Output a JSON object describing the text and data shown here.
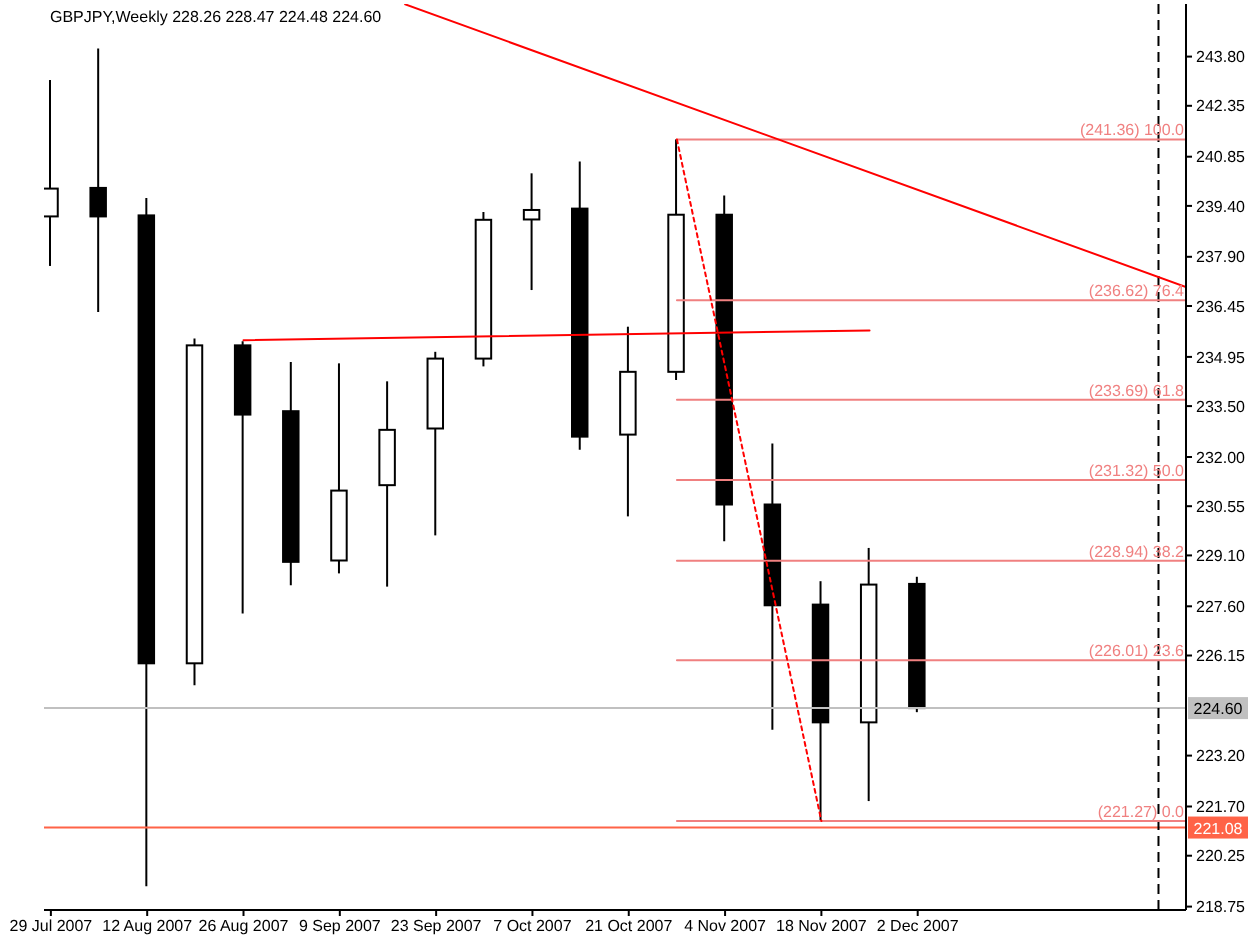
{
  "chart_data": {
    "type": "candlestick",
    "title": "GBPJPY,Weekly 228.26 228.47 224.48 224.60",
    "x": [
      "2007-07-29",
      "2007-08-05",
      "2007-08-12",
      "2007-08-19",
      "2007-08-26",
      "2007-09-02",
      "2007-09-09",
      "2007-09-16",
      "2007-09-23",
      "2007-09-30",
      "2007-10-07",
      "2007-10-14",
      "2007-10-21",
      "2007-10-28",
      "2007-11-04",
      "2007-11-11",
      "2007-11-18",
      "2007-11-25",
      "2007-12-02"
    ],
    "ohlc": [
      [
        239.09,
        243.11,
        237.63,
        239.91
      ],
      [
        239.93,
        244.04,
        236.27,
        239.09
      ],
      [
        239.12,
        239.63,
        219.35,
        225.92
      ],
      [
        225.92,
        235.49,
        225.27,
        235.29
      ],
      [
        235.29,
        235.41,
        227.39,
        233.25
      ],
      [
        233.35,
        234.8,
        228.22,
        228.91
      ],
      [
        228.95,
        234.76,
        228.57,
        231.01
      ],
      [
        231.17,
        234.23,
        228.18,
        232.8
      ],
      [
        232.84,
        235.1,
        229.69,
        234.9
      ],
      [
        234.9,
        239.22,
        234.67,
        238.99
      ],
      [
        239.0,
        240.36,
        236.92,
        239.28
      ],
      [
        239.32,
        240.71,
        232.21,
        232.6
      ],
      [
        232.66,
        235.84,
        230.25,
        234.51
      ],
      [
        234.51,
        241.36,
        234.27,
        239.14
      ],
      [
        239.14,
        239.71,
        229.52,
        230.6
      ],
      [
        230.6,
        232.4,
        223.96,
        227.63
      ],
      [
        227.65,
        228.34,
        221.27,
        224.18
      ],
      [
        224.18,
        229.32,
        221.86,
        228.24
      ],
      [
        228.26,
        228.47,
        224.48,
        224.6
      ]
    ],
    "color": "#000000",
    "colors": [
      "#ffffff",
      "#000000",
      "#000000",
      "#ffffff",
      "#000000",
      "#000000",
      "#ffffff",
      "#ffffff",
      "#ffffff",
      "#ffffff",
      "#ffffff",
      "#000000",
      "#ffffff",
      "#ffffff",
      "#000000",
      "#000000",
      "#000000",
      "#ffffff",
      "#000000"
    ],
    "xlim": [
      "2007-07-28",
      "2008-01-10"
    ],
    "xticks": [
      {
        "value": "2007-07-29",
        "label": "29 Jul 2007"
      },
      {
        "value": "2007-08-12",
        "label": "12 Aug 2007"
      },
      {
        "value": "2007-08-26",
        "label": "26 Aug 2007"
      },
      {
        "value": "2007-09-09",
        "label": "9 Sep 2007"
      },
      {
        "value": "2007-09-23",
        "label": "23 Sep 2007"
      },
      {
        "value": "2007-10-07",
        "label": "7 Oct 2007"
      },
      {
        "value": "2007-10-21",
        "label": "21 Oct 2007"
      },
      {
        "value": "2007-11-04",
        "label": "4 Nov 2007"
      },
      {
        "value": "2007-11-18",
        "label": "18 Nov 2007"
      },
      {
        "value": "2007-12-02",
        "label": "2 Dec 2007"
      }
    ],
    "ylim": [
      218.65,
      245.35
    ],
    "yticks": [
      {
        "value": 243.8,
        "label": "243.80"
      },
      242.35,
      240.85,
      {
        "value": 239.4,
        "label": "239.40"
      },
      {
        "value": 237.9,
        "label": "237.90"
      },
      236.45,
      234.95,
      {
        "value": 233.5,
        "label": "233.50"
      },
      {
        "value": 232,
        "label": "232.00"
      },
      230.55,
      {
        "value": 229.1,
        "label": "229.10"
      },
      {
        "value": 227.6,
        "label": "227.60"
      },
      226.15,
      {
        "value": 223.2,
        "label": "223.20"
      },
      {
        "value": 221.7,
        "label": "221.70"
      },
      220.25,
      218.75
    ],
    "marker": "none",
    "series": [
      {
        "type": "line",
        "name": "(241.36) 100.0",
        "color": "#f08080",
        "x": [
          "2007-10-28",
          "2008-01-10"
        ],
        "values": [
          241.36,
          241.36
        ]
      },
      {
        "type": "line",
        "name": "(236.62) 76.4",
        "color": "#f08080",
        "x": [
          "2007-10-28",
          "2008-01-10"
        ],
        "values": [
          236.62,
          236.62
        ]
      },
      {
        "type": "line",
        "name": "(233.69) 61.8",
        "color": "#f08080",
        "x": [
          "2007-10-28",
          "2008-01-10"
        ],
        "values": [
          233.69,
          233.69
        ]
      },
      {
        "type": "line",
        "name": "(231.32) 50.0",
        "color": "#f08080",
        "x": [
          "2007-10-28",
          "2008-01-10"
        ],
        "values": [
          231.32,
          231.32
        ]
      },
      {
        "type": "line",
        "name": "(228.94) 38.2",
        "color": "#f08080",
        "x": [
          "2007-10-28",
          "2008-01-10"
        ],
        "values": [
          228.94,
          228.94
        ]
      },
      {
        "type": "line",
        "name": "(226.01) 23.6",
        "color": "#f08080",
        "x": [
          "2007-10-28",
          "2008-01-10"
        ],
        "values": [
          226.01,
          226.01
        ]
      },
      {
        "type": "line",
        "name": "(221.27) 0.0",
        "color": "#f08080",
        "x": [
          "2007-10-28",
          "2008-01-10"
        ],
        "values": [
          221.27,
          221.27
        ]
      },
      {
        "type": "line",
        "color": "#ff0000",
        "x": [
          "2007-09-18T12:00",
          "2008-01-10"
        ],
        "values": [
          245.34,
          237.01
        ]
      },
      {
        "type": "line",
        "color": "#ff0000",
        "x": [
          "2007-08-26",
          "2007-11-25"
        ],
        "values": [
          235.44,
          235.73
        ]
      },
      {
        "type": "line",
        "color": "#ff0000",
        "line_style": "dotted",
        "x": [
          "2007-10-28",
          "2007-11-18"
        ],
        "values": [
          241.36,
          221.27
        ]
      }
    ],
    "ref_lines": [
      {
        "axis": "y",
        "value": 224.6,
        "label": "224.60",
        "color": "#c0c0c0"
      },
      {
        "axis": "y",
        "value": 221.08,
        "label": "221.08",
        "color": "#ff6347"
      },
      {
        "axis": "x",
        "value": "2008-01-06",
        "color": "#000000",
        "line_style": "dashed"
      }
    ]
  }
}
